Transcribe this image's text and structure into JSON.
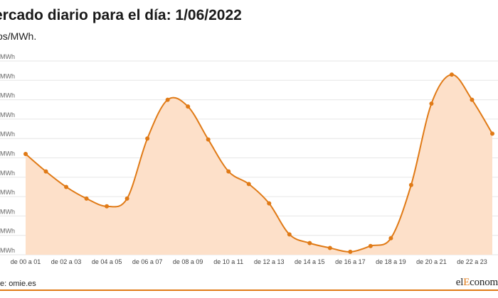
{
  "chart_data": {
    "type": "area",
    "title": "ercado diario para el día: 1/06/2022",
    "subtitle": "os/MWh.",
    "source": "e: omie.es",
    "logo": {
      "prefix": "el",
      "accent": "E",
      "rest": "conom"
    },
    "y_tick_labels": [
      "MWh",
      "MWh",
      "MWh",
      "MWh",
      "MWh",
      "MWh",
      "MWh",
      "MWh",
      "MWh",
      "MWh",
      "MWh"
    ],
    "ylim": [
      0,
      10
    ],
    "x_tick_labels": [
      "de 00 a 01",
      "de 02 a 03",
      "de 04 a 05",
      "de 06 a 07",
      "de 08 a 09",
      "de 10 a 11",
      "de 12 a 13",
      "de 14 a 15",
      "de 16 a 17",
      "de 18 a 19",
      "de 20 a 21",
      "de 22 a 23"
    ],
    "x_tick_positions": [
      0,
      2,
      4,
      6,
      8,
      10,
      12,
      14,
      16,
      18,
      20,
      22
    ],
    "x": [
      0,
      1,
      2,
      3,
      4,
      5,
      6,
      7,
      8,
      9,
      10,
      11,
      12,
      13,
      14,
      15,
      16,
      17,
      18,
      19,
      20,
      21,
      22,
      23
    ],
    "values": [
      5.2,
      4.3,
      3.5,
      2.9,
      2.5,
      2.9,
      6.0,
      8.0,
      7.65,
      5.95,
      4.3,
      3.65,
      2.65,
      1.05,
      0.6,
      0.35,
      0.15,
      0.45,
      0.85,
      3.6,
      7.8,
      9.3,
      8.0,
      6.25
    ],
    "colors": {
      "line": "#e07a16",
      "fill": "#fde0c9",
      "grid": "#e6e6e6",
      "brand": "#e07a16"
    },
    "grid": true
  }
}
